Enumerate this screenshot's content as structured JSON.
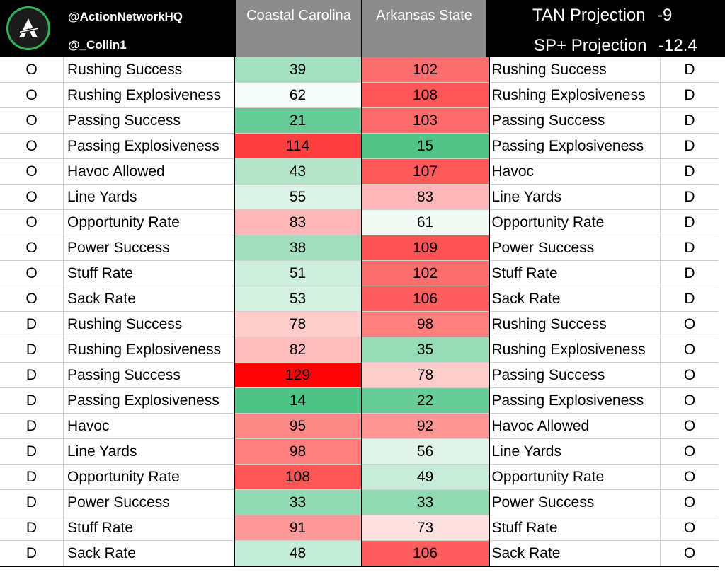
{
  "header": {
    "handle_primary": "@ActionNetworkHQ",
    "handle_secondary": "@_Collin1",
    "team_left": "Coastal Carolina",
    "team_right": "Arkansas State",
    "tan_label": "TAN Projection",
    "tan_value": "-9",
    "sp_label": "SP+ Projection",
    "sp_value": "-12.4",
    "logo_icon": "action-network-logo-icon"
  },
  "colors": {
    "header_bg": "#000000",
    "team_header_bg": "#8c8c8c",
    "rank_best": "#20b466",
    "rank_mid": "#ffffff",
    "rank_worst": "#ff0000"
  },
  "rows": [
    {
      "left_side": "O",
      "left_stat": "Rushing Success",
      "left_rank": "39",
      "right_rank": "102",
      "right_stat": "Rushing Success",
      "right_side": "D"
    },
    {
      "left_side": "O",
      "left_stat": "Rushing Explosiveness",
      "left_rank": "62",
      "right_rank": "108",
      "right_stat": "Rushing Explosiveness",
      "right_side": "D"
    },
    {
      "left_side": "O",
      "left_stat": "Passing Success",
      "left_rank": "21",
      "right_rank": "103",
      "right_stat": "Passing Success",
      "right_side": "D"
    },
    {
      "left_side": "O",
      "left_stat": "Passing Explosiveness",
      "left_rank": "114",
      "right_rank": "15",
      "right_stat": "Passing Explosiveness",
      "right_side": "D"
    },
    {
      "left_side": "O",
      "left_stat": "Havoc Allowed",
      "left_rank": "43",
      "right_rank": "107",
      "right_stat": "Havoc",
      "right_side": "D"
    },
    {
      "left_side": "O",
      "left_stat": "Line Yards",
      "left_rank": "55",
      "right_rank": "83",
      "right_stat": "Line Yards",
      "right_side": "D"
    },
    {
      "left_side": "O",
      "left_stat": "Opportunity Rate",
      "left_rank": "83",
      "right_rank": "61",
      "right_stat": "Opportunity Rate",
      "right_side": "D"
    },
    {
      "left_side": "O",
      "left_stat": "Power Success",
      "left_rank": "38",
      "right_rank": "109",
      "right_stat": "Power Success",
      "right_side": "D"
    },
    {
      "left_side": "O",
      "left_stat": "Stuff Rate",
      "left_rank": "51",
      "right_rank": "102",
      "right_stat": "Stuff Rate",
      "right_side": "D"
    },
    {
      "left_side": "O",
      "left_stat": "Sack Rate",
      "left_rank": "53",
      "right_rank": "106",
      "right_stat": "Sack Rate",
      "right_side": "D"
    },
    {
      "left_side": "D",
      "left_stat": "Rushing Success",
      "left_rank": "78",
      "right_rank": "98",
      "right_stat": "Rushing Success",
      "right_side": "O"
    },
    {
      "left_side": "D",
      "left_stat": "Rushing Explosiveness",
      "left_rank": "82",
      "right_rank": "35",
      "right_stat": "Rushing Explosiveness",
      "right_side": "O"
    },
    {
      "left_side": "D",
      "left_stat": "Passing Success",
      "left_rank": "129",
      "right_rank": "78",
      "right_stat": "Passing Success",
      "right_side": "O"
    },
    {
      "left_side": "D",
      "left_stat": "Passing Explosiveness",
      "left_rank": "14",
      "right_rank": "22",
      "right_stat": "Passing Explosiveness",
      "right_side": "O"
    },
    {
      "left_side": "D",
      "left_stat": "Havoc",
      "left_rank": "95",
      "right_rank": "92",
      "right_stat": "Havoc Allowed",
      "right_side": "O"
    },
    {
      "left_side": "D",
      "left_stat": "Line Yards",
      "left_rank": "98",
      "right_rank": "56",
      "right_stat": "Line Yards",
      "right_side": "O"
    },
    {
      "left_side": "D",
      "left_stat": "Opportunity Rate",
      "left_rank": "108",
      "right_rank": "49",
      "right_stat": "Opportunity Rate",
      "right_side": "O"
    },
    {
      "left_side": "D",
      "left_stat": "Power Success",
      "left_rank": "33",
      "right_rank": "33",
      "right_stat": "Power Success",
      "right_side": "O"
    },
    {
      "left_side": "D",
      "left_stat": "Stuff Rate",
      "left_rank": "91",
      "right_rank": "73",
      "right_stat": "Stuff Rate",
      "right_side": "O"
    },
    {
      "left_side": "D",
      "left_stat": "Sack Rate",
      "left_rank": "48",
      "right_rank": "106",
      "right_stat": "Sack Rate",
      "right_side": "O"
    }
  ]
}
